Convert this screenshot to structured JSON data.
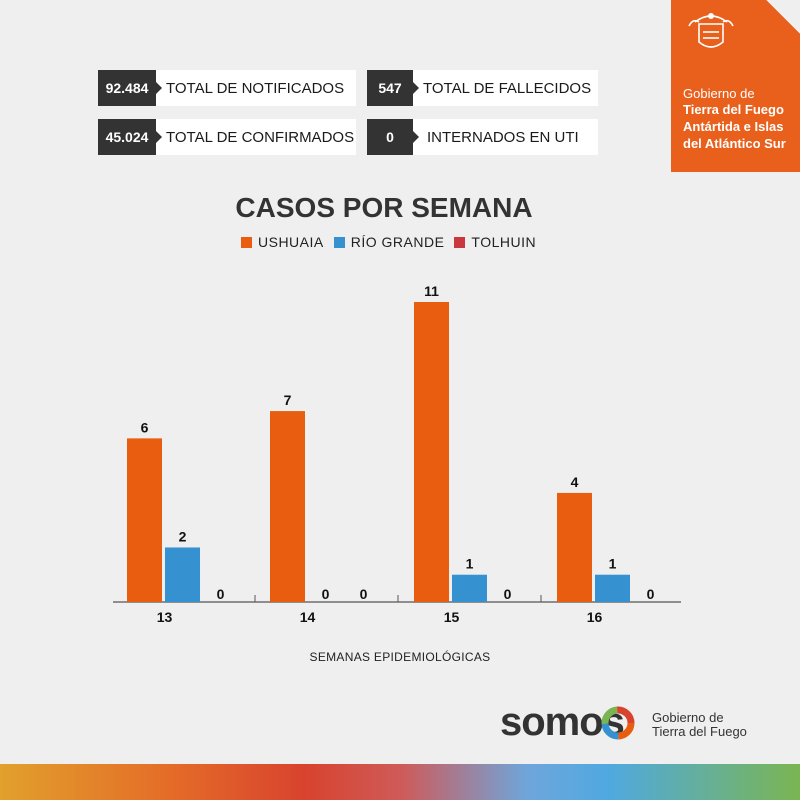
{
  "stats": {
    "notificados": {
      "value": "92.484",
      "label": "TOTAL DE NOTIFICADOS"
    },
    "fallecidos": {
      "value": "547",
      "label": "TOTAL DE FALLECIDOS"
    },
    "confirmados": {
      "value": "45.024",
      "label": "TOTAL DE CONFIRMADOS"
    },
    "uti": {
      "value": "0",
      "label": "INTERNADOS EN UTI"
    }
  },
  "gov": {
    "line1": "Gobierno de",
    "line2": "Tierra del Fuego",
    "line3": "Antártida e Islas",
    "line4": "del Atlántico Sur"
  },
  "chart_data": {
    "type": "bar",
    "title": "CASOS POR SEMANA",
    "xlabel": "SEMANAS EPIDEMIOLÓGICAS",
    "ylabel": "",
    "categories": [
      "13",
      "14",
      "15",
      "16"
    ],
    "series": [
      {
        "name": "USHUAIA",
        "color": "#e85d0f",
        "values": [
          6,
          7,
          11,
          4
        ]
      },
      {
        "name": "RÍO GRANDE",
        "color": "#3591d0",
        "values": [
          2,
          0,
          1,
          1
        ]
      },
      {
        "name": "TOLHUIN",
        "color": "#c8383e",
        "values": [
          0,
          0,
          0,
          0
        ]
      }
    ],
    "ylim": [
      0,
      11
    ],
    "grid": false,
    "legend": "top"
  },
  "footer": {
    "brand": "somos",
    "sub1": "Gobierno de",
    "sub2": "Tierra del Fuego"
  }
}
